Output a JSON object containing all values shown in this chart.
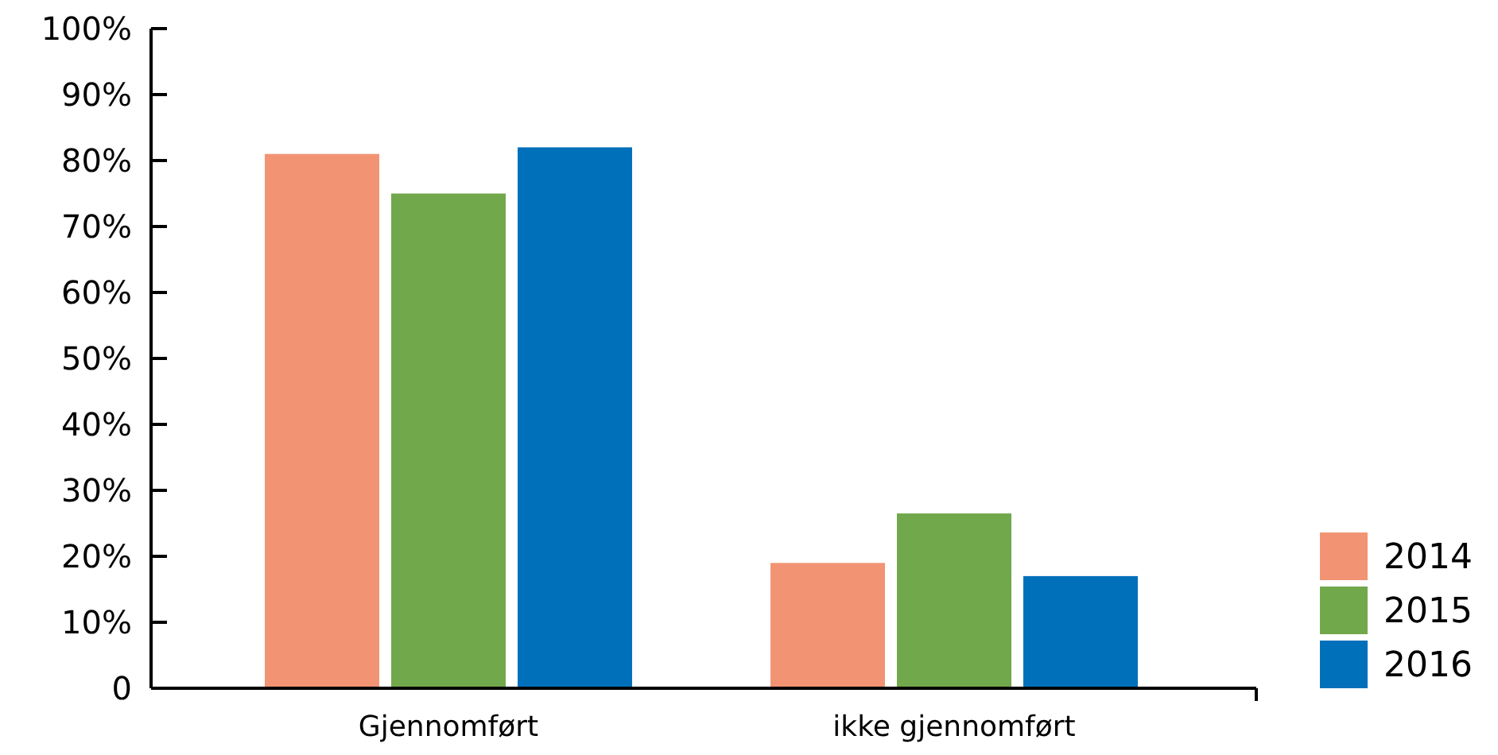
{
  "chart_data": {
    "type": "bar",
    "categories": [
      "Gjennomført",
      "ikke gjennomført"
    ],
    "series": [
      {
        "name": "2014",
        "color": "#f29474",
        "values": [
          81,
          19
        ]
      },
      {
        "name": "2015",
        "color": "#72a84c",
        "values": [
          75,
          26.5
        ]
      },
      {
        "name": "2016",
        "color": "#0070bb",
        "values": [
          82,
          17
        ]
      }
    ],
    "ylim": [
      0,
      100
    ],
    "yticks": [
      0,
      {
        "value": 10,
        "label": "10%"
      },
      {
        "value": 20,
        "label": "20%"
      },
      {
        "value": 30,
        "label": "30%"
      },
      {
        "value": 40,
        "label": "40%"
      },
      {
        "value": 50,
        "label": "50%"
      },
      {
        "value": 60,
        "label": "60%"
      },
      {
        "value": 70,
        "label": "70%"
      },
      {
        "value": 80,
        "label": "80%"
      },
      {
        "value": 90,
        "label": "90%"
      },
      {
        "value": 100,
        "label": "100%"
      }
    ],
    "grid": false,
    "legend": "bottom right"
  }
}
